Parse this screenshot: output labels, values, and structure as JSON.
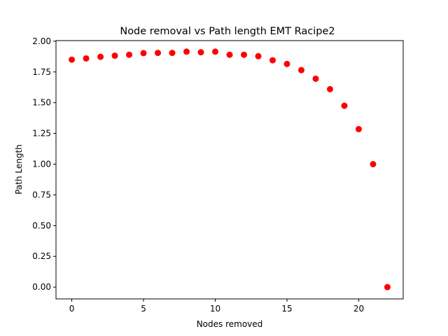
{
  "chart_data": {
    "type": "scatter",
    "title": "Node removal vs Path length EMT Racipe2",
    "xlabel": "Nodes removed",
    "ylabel": "Path Length",
    "xlim": [
      -1.1,
      23.1
    ],
    "ylim": [
      -0.096,
      2.005
    ],
    "xticks": [
      0,
      5,
      10,
      15,
      20
    ],
    "yticks": [
      0.0,
      0.25,
      0.5,
      0.75,
      1.0,
      1.25,
      1.5,
      1.75,
      2.0
    ],
    "xtick_labels": [
      "0",
      "5",
      "10",
      "15",
      "20"
    ],
    "ytick_labels": [
      "0.00",
      "0.25",
      "0.50",
      "0.75",
      "1.00",
      "1.25",
      "1.50",
      "1.75",
      "2.00"
    ],
    "grid": false,
    "marker_color": "#ff0000",
    "series": [
      {
        "x": [
          0,
          1,
          2,
          3,
          4,
          5,
          6,
          7,
          8,
          9,
          10,
          11,
          12,
          13,
          14,
          15,
          16,
          17,
          18,
          19,
          20,
          21,
          22
        ],
        "y": [
          1.85,
          1.86,
          1.873,
          1.882,
          1.89,
          1.903,
          1.905,
          1.905,
          1.915,
          1.91,
          1.915,
          1.89,
          1.89,
          1.878,
          1.845,
          1.815,
          1.765,
          1.695,
          1.61,
          1.475,
          1.285,
          1.0,
          0.0
        ]
      }
    ]
  }
}
